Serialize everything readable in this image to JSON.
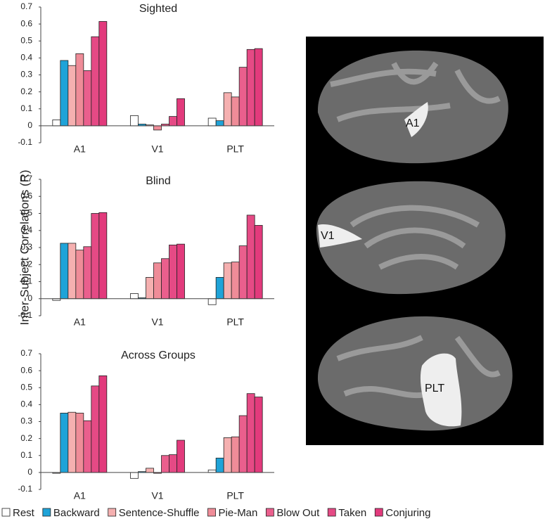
{
  "chart_data": [
    {
      "type": "bar",
      "title": "Sighted",
      "y_label": "Inter-Subject Correlations (R)",
      "categories": [
        "A1",
        "V1",
        "PLT"
      ],
      "series": [
        {
          "name": "Rest",
          "color": "#ffffff",
          "values": [
            0.035,
            0.06,
            0.045
          ]
        },
        {
          "name": "Backward",
          "color": "#1fa3d8",
          "values": [
            0.385,
            0.01,
            0.03
          ]
        },
        {
          "name": "Sentence-Shuffle",
          "color": "#f5b0b0",
          "values": [
            0.355,
            0.005,
            0.195
          ]
        },
        {
          "name": "Pie-Man",
          "color": "#ef8c98",
          "values": [
            0.425,
            -0.025,
            0.17
          ]
        },
        {
          "name": "Blow Out",
          "color": "#ea5f8d",
          "values": [
            0.325,
            0.01,
            0.345
          ]
        },
        {
          "name": "Taken",
          "color": "#e54a85",
          "values": [
            0.525,
            0.055,
            0.45
          ]
        },
        {
          "name": "Conjuring",
          "color": "#e23a7c",
          "values": [
            0.615,
            0.16,
            0.455
          ]
        }
      ],
      "ylim": [
        -0.1,
        0.7
      ],
      "yticks": [
        -0.1,
        0,
        0.1,
        0.2,
        0.3,
        0.4,
        0.5,
        0.6,
        0.7
      ]
    },
    {
      "type": "bar",
      "title": "Blind",
      "categories": [
        "A1",
        "V1",
        "PLT"
      ],
      "series": [
        {
          "values": [
            -0.01,
            0.03,
            -0.035
          ]
        },
        {
          "values": [
            0.325,
            0.005,
            0.125
          ]
        },
        {
          "values": [
            0.325,
            0.125,
            0.21
          ]
        },
        {
          "values": [
            0.285,
            0.21,
            0.215
          ]
        },
        {
          "values": [
            0.305,
            0.235,
            0.31
          ]
        },
        {
          "values": [
            0.5,
            0.315,
            0.49
          ]
        },
        {
          "values": [
            0.505,
            0.32,
            0.43
          ]
        }
      ],
      "ylim": [
        -0.1,
        0.7
      ],
      "yticks": [
        -0.1,
        0,
        0.1,
        0.2,
        0.3,
        0.4,
        0.5,
        0.6,
        0.7
      ]
    },
    {
      "type": "bar",
      "title": "Across Groups",
      "categories": [
        "A1",
        "V1",
        "PLT"
      ],
      "series": [
        {
          "values": [
            -0.005,
            -0.035,
            0.015
          ]
        },
        {
          "values": [
            0.35,
            0.005,
            0.085
          ]
        },
        {
          "values": [
            0.355,
            0.025,
            0.205
          ]
        },
        {
          "values": [
            0.35,
            -0.005,
            0.21
          ]
        },
        {
          "values": [
            0.305,
            0.1,
            0.335
          ]
        },
        {
          "values": [
            0.51,
            0.105,
            0.465
          ]
        },
        {
          "values": [
            0.57,
            0.19,
            0.445
          ]
        }
      ],
      "ylim": [
        -0.1,
        0.7
      ],
      "yticks": [
        -0.1,
        0,
        0.1,
        0.2,
        0.3,
        0.4,
        0.5,
        0.6,
        0.7
      ]
    }
  ],
  "brain_panel": {
    "labels": [
      "A1",
      "V1",
      "PLT"
    ]
  }
}
